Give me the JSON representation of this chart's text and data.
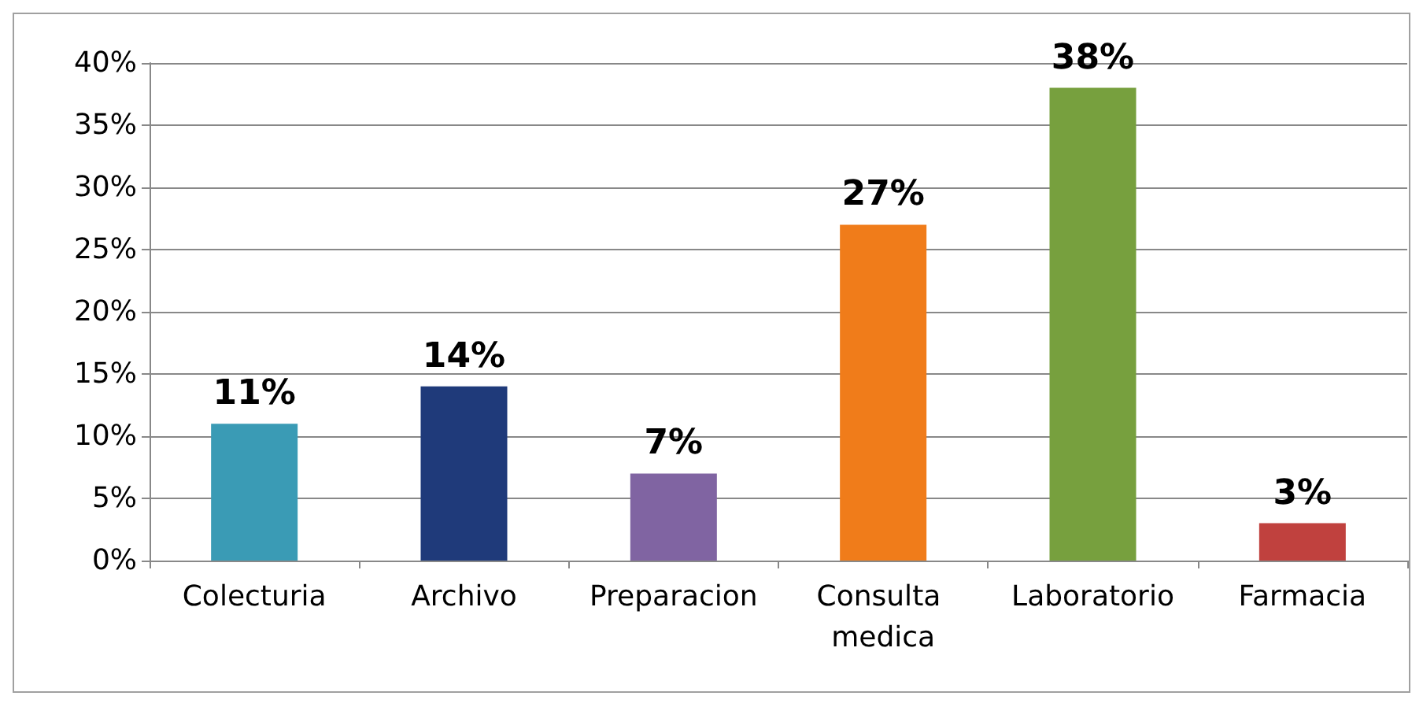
{
  "chart_data": {
    "type": "bar",
    "categories": [
      "Colecturia",
      "Archivo",
      "Preparacion",
      "Consulta medica",
      "Laboratorio",
      "Farmacia"
    ],
    "values": [
      11,
      14,
      7,
      27,
      38,
      3
    ],
    "colors": [
      "#3a9bb5",
      "#1f3a7a",
      "#8064a2",
      "#f07c1a",
      "#77a03e",
      "#c0413e"
    ],
    "value_labels": [
      "11%",
      "14%",
      "7%",
      "27%",
      "38%",
      "3%"
    ],
    "ylim": [
      0,
      40
    ],
    "yticks": [
      {
        "value": 0,
        "label": "0%"
      },
      {
        "value": 5,
        "label": "5%"
      },
      {
        "value": 10,
        "label": "10%"
      },
      {
        "value": 15,
        "label": "15%"
      },
      {
        "value": 20,
        "label": "20%"
      },
      {
        "value": 25,
        "label": "25%"
      },
      {
        "value": 30,
        "label": "30%"
      },
      {
        "value": 35,
        "label": "35%"
      },
      {
        "value": 40,
        "label": "40%"
      }
    ],
    "grid": "y"
  }
}
